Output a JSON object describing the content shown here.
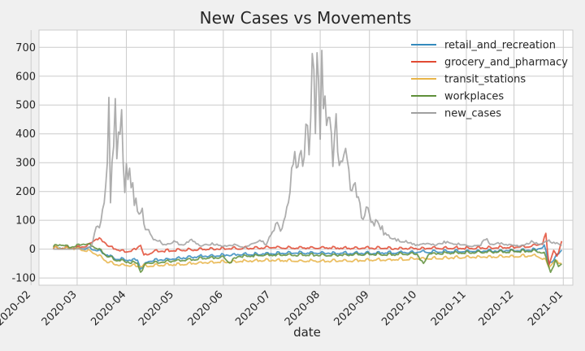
{
  "chart_data": {
    "type": "line",
    "title": "New Cases vs Movements",
    "xlabel": "date",
    "ylabel": "",
    "x_start": "2020-02-15",
    "x_end": "2020-12-31",
    "xlim": [
      "2020-02-06",
      "2021-01-07"
    ],
    "ylim": [
      -125,
      760
    ],
    "yticks": [
      -100,
      0,
      100,
      200,
      300,
      400,
      500,
      600,
      700
    ],
    "xticks": [
      "2020-02",
      "2020-03",
      "2020-04",
      "2020-05",
      "2020-06",
      "2020-07",
      "2020-08",
      "2020-09",
      "2020-10",
      "2020-11",
      "2020-12",
      "2021-01"
    ],
    "grid": true,
    "legend_position": "top-right",
    "series": [
      {
        "name": "retail_and_recreation",
        "color": "#348ABD",
        "points": [
          [
            "2020-02-15",
            3
          ],
          [
            "2020-03-01",
            2
          ],
          [
            "2020-03-10",
            0
          ],
          [
            "2020-03-15",
            -8
          ],
          [
            "2020-03-20",
            -22
          ],
          [
            "2020-03-25",
            -35
          ],
          [
            "2020-04-01",
            -38
          ],
          [
            "2020-04-08",
            -40
          ],
          [
            "2020-04-10",
            -70
          ],
          [
            "2020-04-15",
            -42
          ],
          [
            "2020-04-25",
            -38
          ],
          [
            "2020-05-05",
            -33
          ],
          [
            "2020-05-15",
            -28
          ],
          [
            "2020-05-25",
            -24
          ],
          [
            "2020-06-01",
            -22
          ],
          [
            "2020-06-15",
            -20
          ],
          [
            "2020-07-01",
            -17
          ],
          [
            "2020-07-15",
            -15
          ],
          [
            "2020-08-01",
            -15
          ],
          [
            "2020-08-15",
            -16
          ],
          [
            "2020-09-01",
            -15
          ],
          [
            "2020-09-15",
            -14
          ],
          [
            "2020-10-01",
            -12
          ],
          [
            "2020-10-15",
            -10
          ],
          [
            "2020-11-01",
            -9
          ],
          [
            "2020-11-15",
            -8
          ],
          [
            "2020-12-01",
            -6
          ],
          [
            "2020-12-15",
            -4
          ],
          [
            "2020-12-20",
            10
          ],
          [
            "2020-12-23",
            -50
          ],
          [
            "2020-12-26",
            -40
          ],
          [
            "2020-12-31",
            -3
          ]
        ]
      },
      {
        "name": "grocery_and_pharmacy",
        "color": "#E24A33",
        "points": [
          [
            "2020-02-15",
            2
          ],
          [
            "2020-03-01",
            3
          ],
          [
            "2020-03-08",
            12
          ],
          [
            "2020-03-13",
            35
          ],
          [
            "2020-03-17",
            28
          ],
          [
            "2020-03-22",
            5
          ],
          [
            "2020-03-27",
            -5
          ],
          [
            "2020-04-01",
            -10
          ],
          [
            "2020-04-06",
            -5
          ],
          [
            "2020-04-10",
            15
          ],
          [
            "2020-04-12",
            -25
          ],
          [
            "2020-04-18",
            -10
          ],
          [
            "2020-04-25",
            -8
          ],
          [
            "2020-05-05",
            -5
          ],
          [
            "2020-05-15",
            -3
          ],
          [
            "2020-06-01",
            0
          ],
          [
            "2020-06-15",
            2
          ],
          [
            "2020-07-01",
            4
          ],
          [
            "2020-07-15",
            3
          ],
          [
            "2020-08-01",
            3
          ],
          [
            "2020-08-15",
            2
          ],
          [
            "2020-09-01",
            2
          ],
          [
            "2020-09-15",
            1
          ],
          [
            "2020-10-01",
            1
          ],
          [
            "2020-10-15",
            2
          ],
          [
            "2020-11-01",
            2
          ],
          [
            "2020-11-15",
            3
          ],
          [
            "2020-12-01",
            5
          ],
          [
            "2020-12-10",
            8
          ],
          [
            "2020-12-19",
            18
          ],
          [
            "2020-12-21",
            48
          ],
          [
            "2020-12-23",
            -55
          ],
          [
            "2020-12-26",
            -5
          ],
          [
            "2020-12-28",
            -30
          ],
          [
            "2020-12-31",
            28
          ]
        ]
      },
      {
        "name": "transit_stations",
        "color": "#E8B448",
        "points": [
          [
            "2020-02-15",
            3
          ],
          [
            "2020-03-01",
            0
          ],
          [
            "2020-03-10",
            -10
          ],
          [
            "2020-03-15",
            -25
          ],
          [
            "2020-03-20",
            -45
          ],
          [
            "2020-03-25",
            -55
          ],
          [
            "2020-04-01",
            -58
          ],
          [
            "2020-04-10",
            -60
          ],
          [
            "2020-04-20",
            -58
          ],
          [
            "2020-05-01",
            -55
          ],
          [
            "2020-05-15",
            -50
          ],
          [
            "2020-06-01",
            -46
          ],
          [
            "2020-06-15",
            -43
          ],
          [
            "2020-07-01",
            -40
          ],
          [
            "2020-07-15",
            -42
          ],
          [
            "2020-08-01",
            -43
          ],
          [
            "2020-08-15",
            -43
          ],
          [
            "2020-09-01",
            -40
          ],
          [
            "2020-09-15",
            -38
          ],
          [
            "2020-10-01",
            -35
          ],
          [
            "2020-10-15",
            -33
          ],
          [
            "2020-11-01",
            -30
          ],
          [
            "2020-11-15",
            -28
          ],
          [
            "2020-12-01",
            -26
          ],
          [
            "2020-12-15",
            -25
          ],
          [
            "2020-12-21",
            -40
          ],
          [
            "2020-12-23",
            -65
          ],
          [
            "2020-12-26",
            -45
          ],
          [
            "2020-12-31",
            -50
          ]
        ]
      },
      {
        "name": "workplaces",
        "color": "#5F8F3A",
        "points": [
          [
            "2020-02-15",
            8
          ],
          [
            "2020-02-20",
            15
          ],
          [
            "2020-02-25",
            5
          ],
          [
            "2020-03-01",
            10
          ],
          [
            "2020-03-05",
            18
          ],
          [
            "2020-03-10",
            12
          ],
          [
            "2020-03-15",
            -5
          ],
          [
            "2020-03-20",
            -25
          ],
          [
            "2020-03-25",
            -38
          ],
          [
            "2020-04-01",
            -45
          ],
          [
            "2020-04-08",
            -50
          ],
          [
            "2020-04-10",
            -80
          ],
          [
            "2020-04-14",
            -50
          ],
          [
            "2020-04-25",
            -45
          ],
          [
            "2020-05-10",
            -38
          ],
          [
            "2020-05-25",
            -32
          ],
          [
            "2020-06-01",
            -28
          ],
          [
            "2020-06-05",
            -50
          ],
          [
            "2020-06-10",
            -27
          ],
          [
            "2020-06-20",
            -25
          ],
          [
            "2020-07-01",
            -22
          ],
          [
            "2020-07-15",
            -22
          ],
          [
            "2020-08-01",
            -22
          ],
          [
            "2020-08-15",
            -22
          ],
          [
            "2020-09-01",
            -20
          ],
          [
            "2020-09-15",
            -20
          ],
          [
            "2020-10-01",
            -18
          ],
          [
            "2020-10-05",
            -55
          ],
          [
            "2020-10-08",
            -18
          ],
          [
            "2020-10-20",
            -15
          ],
          [
            "2020-11-01",
            -14
          ],
          [
            "2020-11-15",
            -12
          ],
          [
            "2020-12-01",
            -10
          ],
          [
            "2020-12-15",
            -8
          ],
          [
            "2020-12-20",
            -15
          ],
          [
            "2020-12-24",
            -80
          ],
          [
            "2020-12-27",
            -45
          ],
          [
            "2020-12-29",
            -60
          ],
          [
            "2020-12-31",
            -50
          ]
        ]
      },
      {
        "name": "new_cases",
        "color": "#A0A0A0",
        "points": [
          [
            "2020-02-15",
            0
          ],
          [
            "2020-02-25",
            0
          ],
          [
            "2020-03-05",
            2
          ],
          [
            "2020-03-10",
            10
          ],
          [
            "2020-03-12",
            60
          ],
          [
            "2020-03-15",
            90
          ],
          [
            "2020-03-17",
            130
          ],
          [
            "2020-03-19",
            260
          ],
          [
            "2020-03-21",
            475
          ],
          [
            "2020-03-22",
            140
          ],
          [
            "2020-03-23",
            360
          ],
          [
            "2020-03-24",
            340
          ],
          [
            "2020-03-25",
            450
          ],
          [
            "2020-03-26",
            350
          ],
          [
            "2020-03-27",
            500
          ],
          [
            "2020-03-28",
            380
          ],
          [
            "2020-03-29",
            420
          ],
          [
            "2020-03-31",
            200
          ],
          [
            "2020-04-01",
            305
          ],
          [
            "2020-04-03",
            250
          ],
          [
            "2020-04-05",
            210
          ],
          [
            "2020-04-07",
            150
          ],
          [
            "2020-04-09",
            110
          ],
          [
            "2020-04-11",
            120
          ],
          [
            "2020-04-13",
            80
          ],
          [
            "2020-04-15",
            60
          ],
          [
            "2020-04-18",
            40
          ],
          [
            "2020-04-21",
            30
          ],
          [
            "2020-04-25",
            15
          ],
          [
            "2020-05-01",
            25
          ],
          [
            "2020-05-06",
            15
          ],
          [
            "2020-05-12",
            30
          ],
          [
            "2020-05-18",
            10
          ],
          [
            "2020-05-25",
            20
          ],
          [
            "2020-06-01",
            10
          ],
          [
            "2020-06-08",
            15
          ],
          [
            "2020-06-14",
            5
          ],
          [
            "2020-06-20",
            20
          ],
          [
            "2020-06-25",
            30
          ],
          [
            "2020-06-28",
            15
          ],
          [
            "2020-07-02",
            60
          ],
          [
            "2020-07-06",
            90
          ],
          [
            "2020-07-08",
            60
          ],
          [
            "2020-07-10",
            120
          ],
          [
            "2020-07-12",
            180
          ],
          [
            "2020-07-15",
            320
          ],
          [
            "2020-07-17",
            250
          ],
          [
            "2020-07-19",
            380
          ],
          [
            "2020-07-21",
            280
          ],
          [
            "2020-07-23",
            470
          ],
          [
            "2020-07-25",
            350
          ],
          [
            "2020-07-27",
            600
          ],
          [
            "2020-07-28",
            715
          ],
          [
            "2020-07-29",
            450
          ],
          [
            "2020-07-30",
            650
          ],
          [
            "2020-07-31",
            700
          ],
          [
            "2020-08-01",
            420
          ],
          [
            "2020-08-02",
            715
          ],
          [
            "2020-08-03",
            500
          ],
          [
            "2020-08-05",
            410
          ],
          [
            "2020-08-07",
            440
          ],
          [
            "2020-08-09",
            320
          ],
          [
            "2020-08-11",
            400
          ],
          [
            "2020-08-13",
            270
          ],
          [
            "2020-08-15",
            260
          ],
          [
            "2020-08-17",
            300
          ],
          [
            "2020-08-19",
            240
          ],
          [
            "2020-08-21",
            180
          ],
          [
            "2020-08-24",
            210
          ],
          [
            "2020-08-27",
            120
          ],
          [
            "2020-08-30",
            140
          ],
          [
            "2020-09-02",
            90
          ],
          [
            "2020-09-06",
            100
          ],
          [
            "2020-09-10",
            60
          ],
          [
            "2020-09-15",
            40
          ],
          [
            "2020-09-20",
            30
          ],
          [
            "2020-09-25",
            25
          ],
          [
            "2020-09-30",
            15
          ],
          [
            "2020-10-06",
            20
          ],
          [
            "2020-10-12",
            15
          ],
          [
            "2020-10-18",
            25
          ],
          [
            "2020-10-24",
            20
          ],
          [
            "2020-10-30",
            15
          ],
          [
            "2020-11-05",
            10
          ],
          [
            "2020-11-10",
            15
          ],
          [
            "2020-11-14",
            40
          ],
          [
            "2020-11-16",
            15
          ],
          [
            "2020-11-22",
            20
          ],
          [
            "2020-11-28",
            15
          ],
          [
            "2020-12-05",
            10
          ],
          [
            "2020-12-12",
            25
          ],
          [
            "2020-12-18",
            15
          ],
          [
            "2020-12-22",
            30
          ],
          [
            "2020-12-27",
            20
          ],
          [
            "2020-12-31",
            15
          ]
        ]
      }
    ]
  }
}
